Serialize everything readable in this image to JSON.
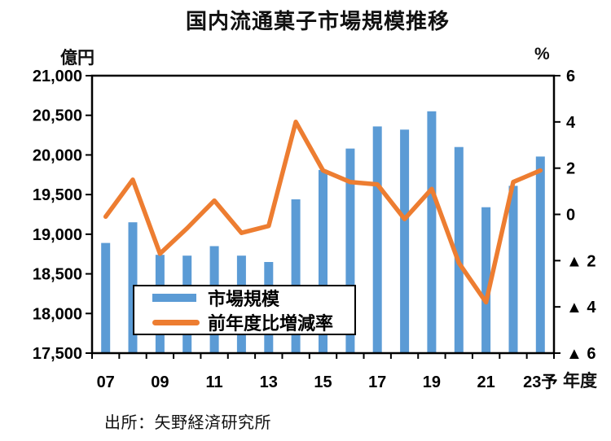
{
  "page": {
    "title": "国内流通菓子市場規模推移",
    "source": "出所：矢野経済研究所"
  },
  "legend": {
    "bar_label": "市場規模",
    "line_label": "前年度比増減率"
  },
  "colors": {
    "bar": "#5B9BD5",
    "line": "#ED7D31",
    "axis": "#000000",
    "text": "#111111"
  },
  "chart_data": {
    "type": "bar",
    "subtype": "combo-bar-line-dual-axis",
    "title": "国内流通菓子市場規模推移",
    "categories": [
      "07",
      "08",
      "09",
      "10",
      "11",
      "12",
      "13",
      "14",
      "15",
      "16",
      "17",
      "18",
      "19",
      "20",
      "21",
      "22",
      "23予"
    ],
    "series": [
      {
        "name": "市場規模",
        "chart_type": "bar",
        "axis": "left",
        "unit": "億円",
        "values": [
          18890,
          19150,
          18740,
          18730,
          18850,
          18730,
          18650,
          19440,
          19810,
          20080,
          20360,
          20320,
          20550,
          20100,
          19340,
          19610,
          19980
        ]
      },
      {
        "name": "前年度比増減率",
        "chart_type": "line",
        "axis": "right",
        "unit": "%",
        "values": [
          -0.1,
          1.5,
          -1.7,
          -0.6,
          0.6,
          -0.8,
          -0.5,
          4.0,
          1.9,
          1.4,
          1.3,
          -0.2,
          1.1,
          -2.1,
          -3.8,
          1.4,
          1.9
        ]
      }
    ],
    "left_axis": {
      "unit": "億円",
      "min": 17500,
      "max": 21000,
      "step": 500,
      "tick_labels": [
        "21,000",
        "20,500",
        "20,000",
        "19,500",
        "19,000",
        "18,500",
        "18,000",
        "17,500"
      ]
    },
    "right_axis": {
      "unit": "%",
      "min": -6,
      "max": 6,
      "step": 2,
      "tick_labels": [
        "6",
        "4",
        "2",
        "0",
        "▲ 2",
        "▲ 4",
        "▲ 6"
      ]
    },
    "x_axis": {
      "suffix": "年度",
      "shown_tick_labels": [
        "07",
        "09",
        "11",
        "13",
        "15",
        "17",
        "19",
        "21",
        "23予"
      ],
      "shown_tick_indices": [
        0,
        2,
        4,
        6,
        8,
        10,
        12,
        14,
        16
      ]
    },
    "grid": false,
    "legend_position": "inside-bottom-left"
  }
}
